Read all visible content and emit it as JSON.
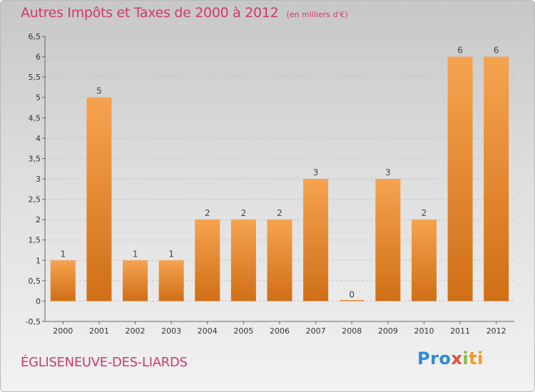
{
  "chart_data": {
    "type": "bar",
    "title": "Autres Impôts et Taxes de 2000 à 2012",
    "unit": "(en milliers d'€)",
    "categories": [
      "2000",
      "2001",
      "2002",
      "2003",
      "2004",
      "2005",
      "2006",
      "2007",
      "2008",
      "2009",
      "2010",
      "2011",
      "2012"
    ],
    "values": [
      1,
      5,
      1,
      1,
      2,
      2,
      2,
      3,
      0,
      3,
      2,
      6,
      6
    ],
    "data_labels": [
      "1",
      "5",
      "1",
      "1",
      "2",
      "2",
      "2",
      "3",
      "0",
      "3",
      "2",
      "6",
      "6"
    ],
    "ylim": [
      -0.5,
      6.5
    ],
    "yticks": [
      "-0,5",
      "0",
      "0,5",
      "1",
      "1,5",
      "2",
      "2,5",
      "3",
      "3,5",
      "4",
      "4,5",
      "5",
      "5,5",
      "6",
      "6,5"
    ],
    "grid": true,
    "bar_color_top": "#f6a350",
    "bar_color_bottom": "#d06f16"
  },
  "commune": "ÉGLISENEUVE-DES-LIARDS",
  "logo": {
    "p1": "Pro",
    "p2": "x",
    "p3": "i",
    "p4": "ti"
  }
}
